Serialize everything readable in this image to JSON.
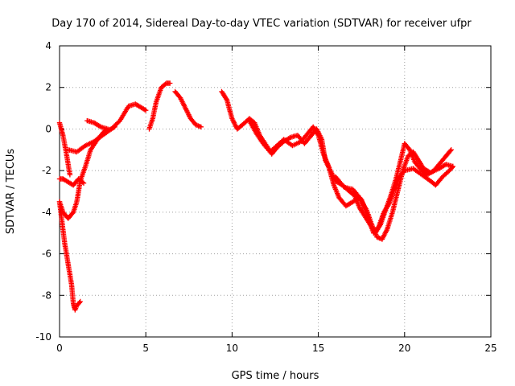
{
  "chart_data": {
    "type": "scatter",
    "title": "Day 170 of 2014, Sidereal Day-to-day VTEC variation (SDTVAR) for receiver ufpr",
    "xlabel": "GPS time / hours",
    "ylabel": "SDTVAR / TECUs",
    "xlim": [
      0,
      25
    ],
    "ylim": [
      -10,
      4
    ],
    "x_ticks": [
      0,
      5,
      10,
      15,
      20,
      25
    ],
    "y_ticks": [
      -10,
      -8,
      -6,
      -4,
      -2,
      0,
      2,
      4
    ],
    "grid": true,
    "legend": "none",
    "marker": "plus",
    "color": "#ff0000",
    "series": [
      {
        "segments": [
          [
            [
              0.0,
              0.3
            ],
            [
              0.2,
              -0.3
            ],
            [
              0.4,
              -1.2
            ],
            [
              0.6,
              -2.2
            ]
          ],
          [
            [
              0.5,
              -1.0
            ],
            [
              1.0,
              -1.1
            ],
            [
              1.5,
              -0.8
            ],
            [
              2.0,
              -0.6
            ],
            [
              2.5,
              -0.3
            ],
            [
              3.0,
              0.0
            ],
            [
              3.5,
              0.4
            ],
            [
              4.0,
              1.1
            ],
            [
              4.4,
              1.2
            ],
            [
              4.8,
              1.0
            ],
            [
              5.0,
              0.9
            ]
          ],
          [
            [
              0.0,
              -3.5
            ],
            [
              0.2,
              -4.0
            ],
            [
              0.5,
              -4.3
            ],
            [
              0.8,
              -4.0
            ],
            [
              1.0,
              -3.5
            ],
            [
              1.2,
              -2.5
            ],
            [
              1.5,
              -1.8
            ],
            [
              1.8,
              -1.0
            ],
            [
              2.2,
              -0.5
            ],
            [
              2.6,
              -0.1
            ],
            [
              3.0,
              0.0
            ],
            [
              3.2,
              0.1
            ]
          ],
          [
            [
              1.6,
              0.4
            ],
            [
              2.0,
              0.3
            ],
            [
              2.4,
              0.1
            ],
            [
              2.8,
              0.0
            ]
          ],
          [
            [
              0.0,
              -2.4
            ],
            [
              0.2,
              -2.4
            ],
            [
              0.4,
              -2.5
            ],
            [
              0.8,
              -2.7
            ],
            [
              1.1,
              -2.4
            ],
            [
              1.4,
              -2.6
            ]
          ],
          [
            [
              0.0,
              -3.5
            ],
            [
              0.3,
              -5.5
            ],
            [
              0.5,
              -6.5
            ],
            [
              0.7,
              -7.5
            ],
            [
              0.8,
              -8.4
            ],
            [
              0.9,
              -8.7
            ],
            [
              1.0,
              -8.5
            ],
            [
              1.2,
              -8.3
            ]
          ],
          [
            [
              5.2,
              0.0
            ],
            [
              5.4,
              0.5
            ],
            [
              5.6,
              1.3
            ],
            [
              5.9,
              2.0
            ],
            [
              6.2,
              2.2
            ],
            [
              6.4,
              2.2
            ]
          ],
          [
            [
              6.7,
              1.8
            ],
            [
              7.0,
              1.5
            ],
            [
              7.3,
              1.0
            ],
            [
              7.6,
              0.5
            ],
            [
              7.9,
              0.2
            ],
            [
              8.2,
              0.1
            ]
          ],
          [
            [
              9.4,
              1.8
            ],
            [
              9.7,
              1.4
            ],
            [
              10.0,
              0.5
            ],
            [
              10.3,
              0.0
            ],
            [
              10.6,
              0.2
            ],
            [
              11.0,
              0.5
            ],
            [
              11.3,
              0.3
            ],
            [
              11.6,
              -0.3
            ],
            [
              12.0,
              -0.8
            ],
            [
              12.3,
              -1.2
            ],
            [
              12.6,
              -0.9
            ],
            [
              13.0,
              -0.6
            ],
            [
              13.4,
              -0.4
            ],
            [
              13.8,
              -0.3
            ],
            [
              14.2,
              -0.7
            ],
            [
              14.6,
              -0.3
            ],
            [
              14.9,
              0.0
            ],
            [
              15.2,
              -0.5
            ],
            [
              15.4,
              -1.5
            ],
            [
              15.7,
              -2.0
            ],
            [
              16.0,
              -2.5
            ],
            [
              16.4,
              -2.7
            ],
            [
              16.8,
              -3.0
            ],
            [
              17.1,
              -3.2
            ],
            [
              17.4,
              -3.8
            ],
            [
              17.7,
              -4.2
            ],
            [
              18.0,
              -4.6
            ],
            [
              18.3,
              -5.0
            ],
            [
              18.6,
              -4.6
            ],
            [
              18.9,
              -3.9
            ],
            [
              19.2,
              -3.2
            ],
            [
              19.5,
              -2.4
            ],
            [
              19.8,
              -1.4
            ],
            [
              20.0,
              -0.7
            ],
            [
              20.3,
              -1.0
            ],
            [
              20.6,
              -1.6
            ],
            [
              21.0,
              -2.0
            ],
            [
              21.3,
              -2.2
            ],
            [
              21.7,
              -2.0
            ],
            [
              22.1,
              -1.6
            ],
            [
              22.4,
              -1.3
            ],
            [
              22.7,
              -1.0
            ]
          ],
          [
            [
              11.0,
              0.4
            ],
            [
              11.4,
              -0.2
            ],
            [
              11.8,
              -0.7
            ],
            [
              12.2,
              -1.1
            ],
            [
              12.6,
              -0.8
            ],
            [
              13.0,
              -0.5
            ],
            [
              13.5,
              -0.8
            ],
            [
              14.0,
              -0.6
            ],
            [
              14.4,
              -0.2
            ],
            [
              14.7,
              0.1
            ],
            [
              15.0,
              -0.3
            ],
            [
              15.3,
              -1.2
            ],
            [
              15.6,
              -1.8
            ],
            [
              15.9,
              -2.7
            ],
            [
              16.2,
              -3.3
            ],
            [
              16.6,
              -3.7
            ],
            [
              17.0,
              -3.5
            ],
            [
              17.4,
              -3.3
            ],
            [
              17.8,
              -3.9
            ],
            [
              18.1,
              -4.6
            ],
            [
              18.4,
              -5.2
            ],
            [
              18.7,
              -5.3
            ],
            [
              19.0,
              -4.8
            ],
            [
              19.3,
              -4.0
            ],
            [
              19.6,
              -3.0
            ],
            [
              19.9,
              -2.0
            ],
            [
              20.2,
              -1.3
            ],
            [
              20.5,
              -1.1
            ],
            [
              20.8,
              -1.5
            ],
            [
              21.1,
              -1.9
            ],
            [
              21.5,
              -2.1
            ],
            [
              22.0,
              -1.9
            ],
            [
              22.4,
              -1.7
            ],
            [
              22.8,
              -1.8
            ]
          ],
          [
            [
              16.0,
              -2.3
            ],
            [
              16.5,
              -2.8
            ],
            [
              17.0,
              -2.9
            ],
            [
              17.5,
              -3.4
            ],
            [
              17.9,
              -4.3
            ],
            [
              18.2,
              -5.0
            ],
            [
              18.5,
              -4.7
            ],
            [
              18.8,
              -4.0
            ],
            [
              19.1,
              -3.6
            ],
            [
              19.4,
              -2.9
            ],
            [
              19.7,
              -2.3
            ],
            [
              20.0,
              -2.0
            ],
            [
              20.5,
              -1.9
            ],
            [
              21.0,
              -2.2
            ],
            [
              21.5,
              -2.5
            ],
            [
              21.8,
              -2.7
            ],
            [
              22.2,
              -2.3
            ],
            [
              22.6,
              -2.0
            ],
            [
              22.8,
              -1.8
            ]
          ]
        ]
      }
    ]
  }
}
